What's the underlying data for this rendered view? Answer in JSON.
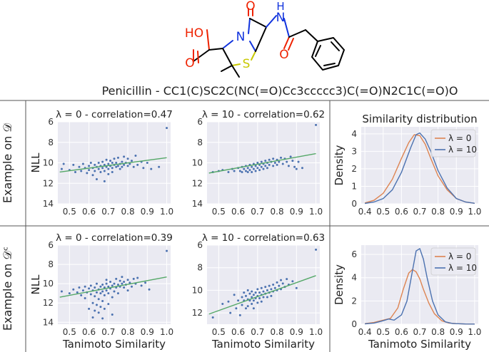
{
  "molecule": {
    "caption": "Penicillin - CC1(C)SC2C(NC(=O)Cc3ccccc3)C(=O)N2C1C(=O)O",
    "atoms": {
      "oxygen": "O",
      "nitrogen": "N",
      "hydrogen": "H",
      "sulfur": "S",
      "hydroxyl": "HO"
    },
    "colors": {
      "oxygen": "#ee2200",
      "nitrogen": "#1133dd",
      "sulfur": "#c8c800",
      "bond": "#000000"
    }
  },
  "row_labels": [
    "Example on 𝒟",
    "Example on 𝒟ᶜ"
  ],
  "colors": {
    "scatter": "#4c72b0",
    "fit": "#55a868",
    "lambda0": "#dd8452",
    "lambda10": "#4c72b0",
    "panel_bg": "#eaeaf2"
  },
  "chart_data": [
    {
      "type": "scatter",
      "title": "λ = 0 - correlation=0.47",
      "xlabel": "",
      "ylabel": "NLL",
      "xlim": [
        0.44,
        1.02
      ],
      "ylim": [
        14,
        6
      ],
      "y_inverted": true,
      "xticks": [
        "0.5",
        "0.6",
        "0.7",
        "0.8",
        "0.9",
        "1.0"
      ],
      "yticks": [
        "6",
        "8",
        "10",
        "12",
        "14"
      ],
      "fit": [
        [
          0.45,
          10.9
        ],
        [
          1.0,
          9.5
        ]
      ],
      "points": [
        [
          0.46,
          10.6
        ],
        [
          0.47,
          10.1
        ],
        [
          0.5,
          10.7
        ],
        [
          0.52,
          10.2
        ],
        [
          0.53,
          10.9
        ],
        [
          0.55,
          10.4
        ],
        [
          0.56,
          10.8
        ],
        [
          0.57,
          10.1
        ],
        [
          0.58,
          10.5
        ],
        [
          0.59,
          11.0
        ],
        [
          0.6,
          10.3
        ],
        [
          0.6,
          10.7
        ],
        [
          0.61,
          10.0
        ],
        [
          0.62,
          10.5
        ],
        [
          0.62,
          11.2
        ],
        [
          0.63,
          10.2
        ],
        [
          0.63,
          10.8
        ],
        [
          0.64,
          10.4
        ],
        [
          0.64,
          11.6
        ],
        [
          0.65,
          10.0
        ],
        [
          0.65,
          10.6
        ],
        [
          0.66,
          10.3
        ],
        [
          0.66,
          10.9
        ],
        [
          0.67,
          9.9
        ],
        [
          0.67,
          10.5
        ],
        [
          0.68,
          10.2
        ],
        [
          0.68,
          10.8
        ],
        [
          0.68,
          11.8
        ],
        [
          0.69,
          10.4
        ],
        [
          0.69,
          9.7
        ],
        [
          0.7,
          10.1
        ],
        [
          0.7,
          10.6
        ],
        [
          0.7,
          11.1
        ],
        [
          0.71,
          10.3
        ],
        [
          0.71,
          9.8
        ],
        [
          0.72,
          10.0
        ],
        [
          0.72,
          10.5
        ],
        [
          0.72,
          10.9
        ],
        [
          0.73,
          10.2
        ],
        [
          0.73,
          9.6
        ],
        [
          0.74,
          10.4
        ],
        [
          0.74,
          10.0
        ],
        [
          0.75,
          10.3
        ],
        [
          0.75,
          9.5
        ],
        [
          0.76,
          10.1
        ],
        [
          0.76,
          10.6
        ],
        [
          0.77,
          9.9
        ],
        [
          0.77,
          10.4
        ],
        [
          0.78,
          10.2
        ],
        [
          0.78,
          9.4
        ],
        [
          0.79,
          10.0
        ],
        [
          0.8,
          10.3
        ],
        [
          0.8,
          9.6
        ],
        [
          0.81,
          10.1
        ],
        [
          0.82,
          9.8
        ],
        [
          0.83,
          10.4
        ],
        [
          0.84,
          9.3
        ],
        [
          0.85,
          10.2
        ],
        [
          0.87,
          9.9
        ],
        [
          0.88,
          10.5
        ],
        [
          0.9,
          10.0
        ],
        [
          0.92,
          10.6
        ],
        [
          0.96,
          10.4
        ],
        [
          1.0,
          6.6
        ]
      ]
    },
    {
      "type": "scatter",
      "title": "λ = 10 - correlation=0.62",
      "xlabel": "",
      "ylabel": "",
      "xlim": [
        0.44,
        1.02
      ],
      "ylim": [
        14,
        6
      ],
      "y_inverted": true,
      "xticks": [
        "0.5",
        "0.6",
        "0.7",
        "0.8",
        "0.9",
        "1.0"
      ],
      "yticks": [
        "6",
        "8",
        "10",
        "12",
        "14"
      ],
      "fit": [
        [
          0.45,
          11.0
        ],
        [
          1.0,
          9.1
        ]
      ],
      "points": [
        [
          0.47,
          10.9
        ],
        [
          0.5,
          10.8
        ],
        [
          0.52,
          10.7
        ],
        [
          0.55,
          10.9
        ],
        [
          0.57,
          10.6
        ],
        [
          0.58,
          10.8
        ],
        [
          0.6,
          10.5
        ],
        [
          0.61,
          10.8
        ],
        [
          0.62,
          10.4
        ],
        [
          0.62,
          10.9
        ],
        [
          0.63,
          10.6
        ],
        [
          0.64,
          10.3
        ],
        [
          0.64,
          10.8
        ],
        [
          0.65,
          10.5
        ],
        [
          0.65,
          10.9
        ],
        [
          0.66,
          10.2
        ],
        [
          0.66,
          10.7
        ],
        [
          0.67,
          10.4
        ],
        [
          0.67,
          10.9
        ],
        [
          0.68,
          10.1
        ],
        [
          0.68,
          10.6
        ],
        [
          0.69,
          10.3
        ],
        [
          0.69,
          10.8
        ],
        [
          0.7,
          10.0
        ],
        [
          0.7,
          10.5
        ],
        [
          0.71,
          10.2
        ],
        [
          0.71,
          10.7
        ],
        [
          0.72,
          9.9
        ],
        [
          0.72,
          10.4
        ],
        [
          0.73,
          10.1
        ],
        [
          0.73,
          10.6
        ],
        [
          0.74,
          9.8
        ],
        [
          0.74,
          10.3
        ],
        [
          0.75,
          10.0
        ],
        [
          0.75,
          10.5
        ],
        [
          0.76,
          9.7
        ],
        [
          0.76,
          10.2
        ],
        [
          0.77,
          9.9
        ],
        [
          0.78,
          10.3
        ],
        [
          0.78,
          9.6
        ],
        [
          0.79,
          10.0
        ],
        [
          0.8,
          9.7
        ],
        [
          0.8,
          10.2
        ],
        [
          0.81,
          9.9
        ],
        [
          0.82,
          9.5
        ],
        [
          0.83,
          10.1
        ],
        [
          0.84,
          9.6
        ],
        [
          0.85,
          9.9
        ],
        [
          0.86,
          10.3
        ],
        [
          0.87,
          9.4
        ],
        [
          0.88,
          9.8
        ],
        [
          0.89,
          10.4
        ],
        [
          0.9,
          10.6
        ],
        [
          0.91,
          9.9
        ],
        [
          0.93,
          10.5
        ],
        [
          1.0,
          6.3
        ]
      ]
    },
    {
      "type": "line",
      "title": "Similarity distribution",
      "xlabel": "",
      "ylabel": "Density",
      "xlim": [
        0.38,
        1.02
      ],
      "ylim": [
        0,
        4.4
      ],
      "xticks": [
        "0.4",
        "0.5",
        "0.6",
        "0.7",
        "0.8",
        "0.9",
        "1.0"
      ],
      "yticks": [
        "0",
        "1",
        "2",
        "3",
        "4"
      ],
      "legend": "upper-right",
      "series": [
        {
          "name": "λ = 0",
          "color": "#dd8452",
          "x": [
            0.4,
            0.45,
            0.5,
            0.55,
            0.6,
            0.64,
            0.67,
            0.7,
            0.73,
            0.76,
            0.8,
            0.85,
            0.9,
            0.95,
            1.0
          ],
          "y": [
            0.05,
            0.2,
            0.6,
            1.4,
            2.6,
            3.5,
            3.95,
            3.9,
            3.4,
            2.6,
            1.6,
            0.8,
            0.3,
            0.1,
            0.03
          ]
        },
        {
          "name": "λ = 10",
          "color": "#4c72b0",
          "x": [
            0.4,
            0.45,
            0.5,
            0.55,
            0.6,
            0.65,
            0.68,
            0.7,
            0.73,
            0.76,
            0.8,
            0.85,
            0.9,
            0.95,
            1.0
          ],
          "y": [
            0.02,
            0.1,
            0.3,
            0.8,
            1.8,
            3.2,
            3.95,
            4.05,
            3.7,
            3.0,
            1.9,
            0.9,
            0.3,
            0.1,
            0.03
          ]
        }
      ]
    },
    {
      "type": "scatter",
      "title": "λ = 0 - correlation=0.39",
      "xlabel": "Tanimoto Similarity",
      "ylabel": "NLL",
      "xlim": [
        0.44,
        1.02
      ],
      "ylim": [
        14.2,
        6
      ],
      "y_inverted": true,
      "xticks": [
        "0.5",
        "0.6",
        "0.7",
        "0.8",
        "0.9",
        "1.0"
      ],
      "yticks": [
        "6",
        "8",
        "10",
        "12",
        "14"
      ],
      "fit": [
        [
          0.45,
          11.4
        ],
        [
          1.0,
          9.3
        ]
      ],
      "points": [
        [
          0.46,
          10.8
        ],
        [
          0.5,
          11.0
        ],
        [
          0.52,
          10.6
        ],
        [
          0.54,
          10.9
        ],
        [
          0.55,
          10.4
        ],
        [
          0.56,
          11.2
        ],
        [
          0.57,
          10.7
        ],
        [
          0.58,
          10.3
        ],
        [
          0.58,
          11.5
        ],
        [
          0.59,
          10.9
        ],
        [
          0.6,
          10.5
        ],
        [
          0.6,
          12.6
        ],
        [
          0.61,
          11.1
        ],
        [
          0.61,
          10.2
        ],
        [
          0.62,
          10.7
        ],
        [
          0.62,
          12.0
        ],
        [
          0.62,
          13.5
        ],
        [
          0.63,
          10.4
        ],
        [
          0.63,
          11.3
        ],
        [
          0.63,
          12.8
        ],
        [
          0.64,
          10.0
        ],
        [
          0.64,
          10.9
        ],
        [
          0.64,
          12.2
        ],
        [
          0.65,
          10.6
        ],
        [
          0.65,
          11.6
        ],
        [
          0.65,
          13.0
        ],
        [
          0.66,
          10.3
        ],
        [
          0.66,
          11.0
        ],
        [
          0.66,
          12.4
        ],
        [
          0.67,
          10.1
        ],
        [
          0.67,
          10.8
        ],
        [
          0.67,
          11.8
        ],
        [
          0.67,
          13.6
        ],
        [
          0.68,
          10.4
        ],
        [
          0.68,
          11.2
        ],
        [
          0.68,
          12.6
        ],
        [
          0.69,
          10.0
        ],
        [
          0.69,
          10.7
        ],
        [
          0.69,
          9.6
        ],
        [
          0.7,
          10.3
        ],
        [
          0.7,
          11.0
        ],
        [
          0.7,
          12.1
        ],
        [
          0.71,
          10.5
        ],
        [
          0.71,
          9.8
        ],
        [
          0.72,
          10.2
        ],
        [
          0.72,
          11.4
        ],
        [
          0.72,
          13.2
        ],
        [
          0.73,
          10.0
        ],
        [
          0.73,
          10.8
        ],
        [
          0.74,
          10.4
        ],
        [
          0.74,
          9.5
        ],
        [
          0.75,
          10.1
        ],
        [
          0.75,
          11.0
        ],
        [
          0.76,
          10.3
        ],
        [
          0.76,
          9.7
        ],
        [
          0.77,
          10.0
        ],
        [
          0.77,
          9.3
        ],
        [
          0.78,
          10.4
        ],
        [
          0.78,
          9.8
        ],
        [
          0.79,
          10.1
        ],
        [
          0.8,
          9.6
        ],
        [
          0.8,
          10.7
        ],
        [
          0.81,
          9.9
        ],
        [
          0.82,
          10.3
        ],
        [
          0.83,
          9.5
        ],
        [
          0.84,
          10.0
        ],
        [
          0.85,
          9.4
        ],
        [
          0.87,
          10.2
        ],
        [
          0.89,
          9.9
        ],
        [
          0.91,
          10.6
        ],
        [
          1.0,
          6.6
        ]
      ]
    },
    {
      "type": "scatter",
      "title": "λ = 10 - correlation=0.63",
      "xlabel": "Tanimoto Similarity",
      "ylabel": "",
      "xlim": [
        0.44,
        1.02
      ],
      "ylim": [
        13,
        6
      ],
      "y_inverted": true,
      "xticks": [
        "0.5",
        "0.6",
        "0.7",
        "0.8",
        "0.9",
        "1.0"
      ],
      "yticks": [
        "6",
        "8",
        "10",
        "12"
      ],
      "fit": [
        [
          0.45,
          12.1
        ],
        [
          1.0,
          8.7
        ]
      ],
      "points": [
        [
          0.47,
          12.4
        ],
        [
          0.52,
          11.2
        ],
        [
          0.55,
          11.0
        ],
        [
          0.56,
          12.0
        ],
        [
          0.58,
          10.4
        ],
        [
          0.59,
          11.6
        ],
        [
          0.6,
          10.9
        ],
        [
          0.61,
          12.2
        ],
        [
          0.62,
          10.6
        ],
        [
          0.62,
          11.3
        ],
        [
          0.63,
          10.2
        ],
        [
          0.63,
          10.9
        ],
        [
          0.64,
          11.6
        ],
        [
          0.64,
          10.5
        ],
        [
          0.65,
          10.0
        ],
        [
          0.65,
          10.8
        ],
        [
          0.65,
          11.4
        ],
        [
          0.66,
          10.3
        ],
        [
          0.66,
          10.9
        ],
        [
          0.67,
          10.6
        ],
        [
          0.67,
          11.2
        ],
        [
          0.67,
          10.1
        ],
        [
          0.68,
          10.4
        ],
        [
          0.68,
          10.9
        ],
        [
          0.68,
          11.6
        ],
        [
          0.69,
          10.2
        ],
        [
          0.69,
          10.7
        ],
        [
          0.7,
          9.9
        ],
        [
          0.7,
          10.5
        ],
        [
          0.7,
          11.1
        ],
        [
          0.71,
          10.2
        ],
        [
          0.71,
          10.7
        ],
        [
          0.72,
          9.8
        ],
        [
          0.72,
          10.4
        ],
        [
          0.72,
          11.0
        ],
        [
          0.73,
          10.1
        ],
        [
          0.73,
          10.6
        ],
        [
          0.74,
          9.7
        ],
        [
          0.74,
          10.3
        ],
        [
          0.75,
          10.0
        ],
        [
          0.75,
          10.6
        ],
        [
          0.76,
          9.6
        ],
        [
          0.76,
          10.2
        ],
        [
          0.77,
          9.9
        ],
        [
          0.77,
          10.5
        ],
        [
          0.78,
          9.5
        ],
        [
          0.78,
          10.1
        ],
        [
          0.79,
          9.8
        ],
        [
          0.8,
          9.3
        ],
        [
          0.8,
          10.0
        ],
        [
          0.81,
          9.6
        ],
        [
          0.82,
          9.1
        ],
        [
          0.82,
          9.9
        ],
        [
          0.83,
          9.4
        ],
        [
          0.84,
          9.7
        ],
        [
          0.85,
          9.0
        ],
        [
          0.86,
          9.5
        ],
        [
          0.88,
          9.2
        ],
        [
          0.9,
          9.8
        ],
        [
          1.0,
          6.4
        ]
      ]
    },
    {
      "type": "line",
      "title": "",
      "xlabel": "Tanimoto Similarity",
      "ylabel": "Density",
      "xlim": [
        0.38,
        1.02
      ],
      "ylim": [
        0,
        6.8
      ],
      "xticks": [
        "0.4",
        "0.5",
        "0.6",
        "0.7",
        "0.8",
        "0.9",
        "1.0"
      ],
      "yticks": [
        "0",
        "2",
        "4",
        "6"
      ],
      "legend": "upper-right",
      "series": [
        {
          "name": "λ = 0",
          "color": "#dd8452",
          "x": [
            0.4,
            0.45,
            0.5,
            0.54,
            0.58,
            0.61,
            0.64,
            0.66,
            0.68,
            0.7,
            0.72,
            0.75,
            0.78,
            0.82,
            0.86,
            0.9,
            0.95,
            1.0
          ],
          "y": [
            0.05,
            0.15,
            0.35,
            0.5,
            1.4,
            3.0,
            4.4,
            4.7,
            4.5,
            3.9,
            3.0,
            1.8,
            0.9,
            0.3,
            0.1,
            0.05,
            0.02,
            0.01
          ]
        },
        {
          "name": "λ = 10",
          "color": "#4c72b0",
          "x": [
            0.4,
            0.45,
            0.5,
            0.53,
            0.56,
            0.6,
            0.63,
            0.66,
            0.68,
            0.7,
            0.72,
            0.74,
            0.77,
            0.8,
            0.84,
            0.88,
            0.95,
            1.0
          ],
          "y": [
            0.03,
            0.1,
            0.3,
            0.45,
            0.35,
            0.8,
            2.0,
            4.6,
            6.3,
            6.5,
            5.6,
            4.0,
            2.0,
            0.8,
            0.2,
            0.06,
            0.02,
            0.01
          ]
        }
      ]
    }
  ]
}
